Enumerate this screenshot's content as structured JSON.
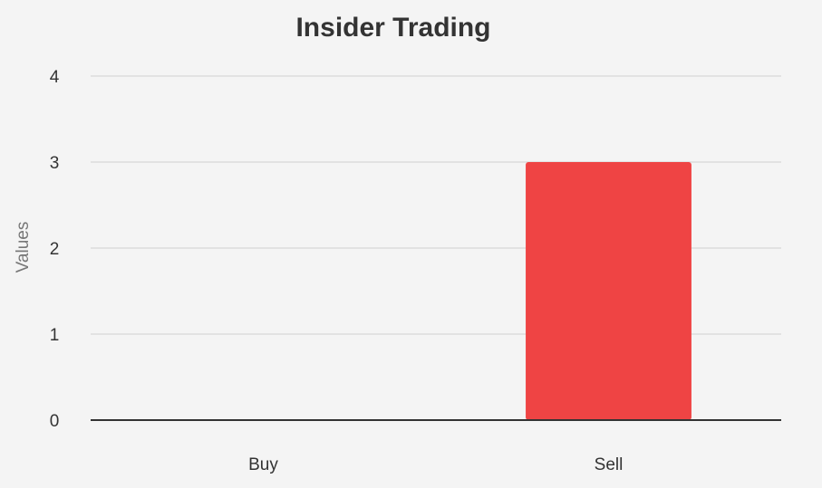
{
  "chart_data": {
    "type": "bar",
    "title": "Insider Trading",
    "xlabel": "",
    "ylabel": "Values",
    "categories": [
      "Buy",
      "Sell"
    ],
    "values": [
      0,
      3
    ],
    "ylim": [
      0,
      4
    ],
    "yticks": [
      "0",
      "1",
      "2",
      "3",
      "4"
    ],
    "grid": true,
    "legend": "none",
    "colors": {
      "bar": "#ef4444",
      "grid": "#e2e2e2",
      "baseline": "#333333",
      "background": "#f4f4f4"
    }
  }
}
